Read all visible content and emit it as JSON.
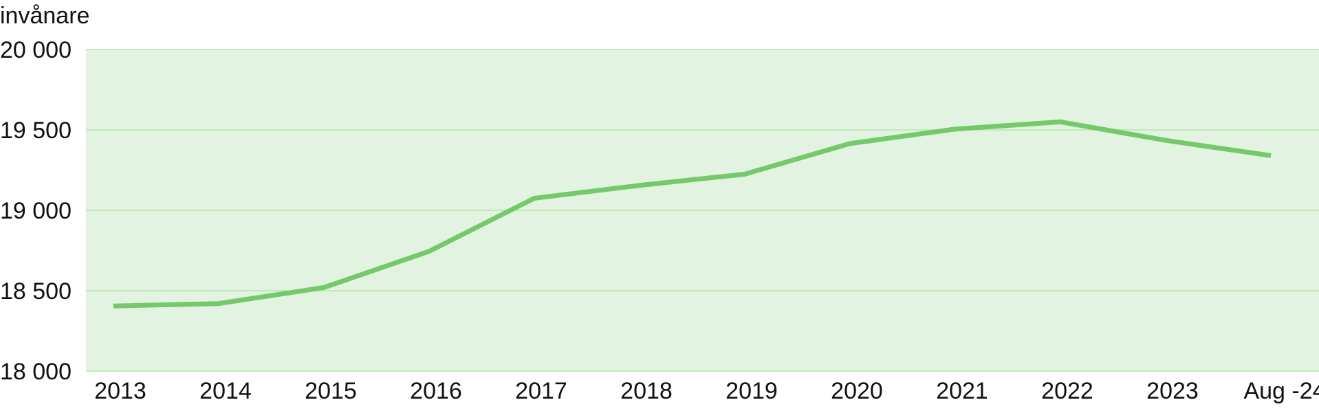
{
  "colors": {
    "plot_background": "#e2f3e1",
    "gridline": "#b7e6ab",
    "series_line": "#74c96a",
    "text": "#111111"
  },
  "chart_data": {
    "type": "line",
    "ylabel": "invånare",
    "categories": [
      "2013",
      "2014",
      "2015",
      "2016",
      "2017",
      "2018",
      "2019",
      "2020",
      "2021",
      "2022",
      "2023",
      "Aug -24"
    ],
    "series": [
      {
        "values": [
          18405,
          18420,
          18520,
          18745,
          19075,
          19155,
          19225,
          19415,
          19505,
          19550,
          19435,
          19340
        ]
      }
    ],
    "ylim": [
      18000,
      20000
    ],
    "yticks": [
      18000,
      18500,
      19000,
      19500,
      20000
    ],
    "ytick_labels": [
      "18 000",
      "18 500",
      "19 000",
      "19 500",
      "20 000"
    ],
    "grid": true,
    "legend": "none"
  }
}
